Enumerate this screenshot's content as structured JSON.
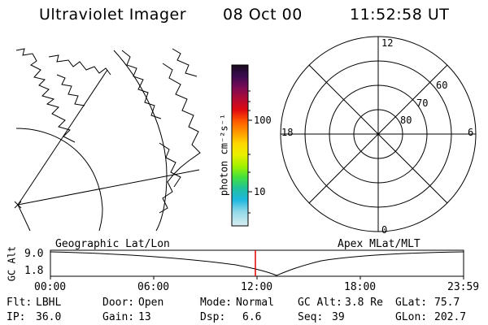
{
  "header": {
    "title": "Ultraviolet Imager",
    "date": "08 Oct 00",
    "time": "11:52:58 UT"
  },
  "colorbar": {
    "unit_label": "photon cm⁻²s⁻¹",
    "ticks": [
      "100",
      "10"
    ],
    "colors": [
      "#1a0a1e",
      "#3a0a50",
      "#7a0a55",
      "#b00a35",
      "#e00a10",
      "#ff5a00",
      "#ff9a00",
      "#ffd800",
      "#e8f000",
      "#a0f000",
      "#40e040",
      "#20c0a0",
      "#20b8e0",
      "#90d8e8",
      "#d8eef2"
    ]
  },
  "polar": {
    "mlt_labels": [
      "12",
      "18",
      "6",
      "0"
    ],
    "lat_labels": [
      "60",
      "70",
      "80"
    ]
  },
  "timeline": {
    "left_label": "Geographic Lat/Lon",
    "right_label": "Apex MLat/MLT",
    "axis_title": "GC Alt",
    "y_ticks": [
      "9.0",
      "1.8"
    ],
    "x_ticks": [
      "00:00",
      "06:00",
      "12:00",
      "18:00",
      "23:59"
    ]
  },
  "status": {
    "row1": {
      "flt_key": "Flt:",
      "flt_val": "LBHL",
      "door_key": "Door:",
      "door_val": "Open",
      "mode_key": "Mode:",
      "mode_val": "Normal",
      "gcalt_key": "GC Alt:",
      "gcalt_val": "3.8 Re",
      "glat_key": "GLat:",
      "glat_val": "75.7"
    },
    "row2": {
      "ip_key": "IP:",
      "ip_val": "36.0",
      "gain_key": "Gain:",
      "gain_val": "13",
      "dsp_key": "Dsp:",
      "dsp_val": "6.6",
      "seq_key": "Seq:",
      "seq_val": "39",
      "glon_key": "GLon:",
      "glon_val": "202.7"
    }
  }
}
